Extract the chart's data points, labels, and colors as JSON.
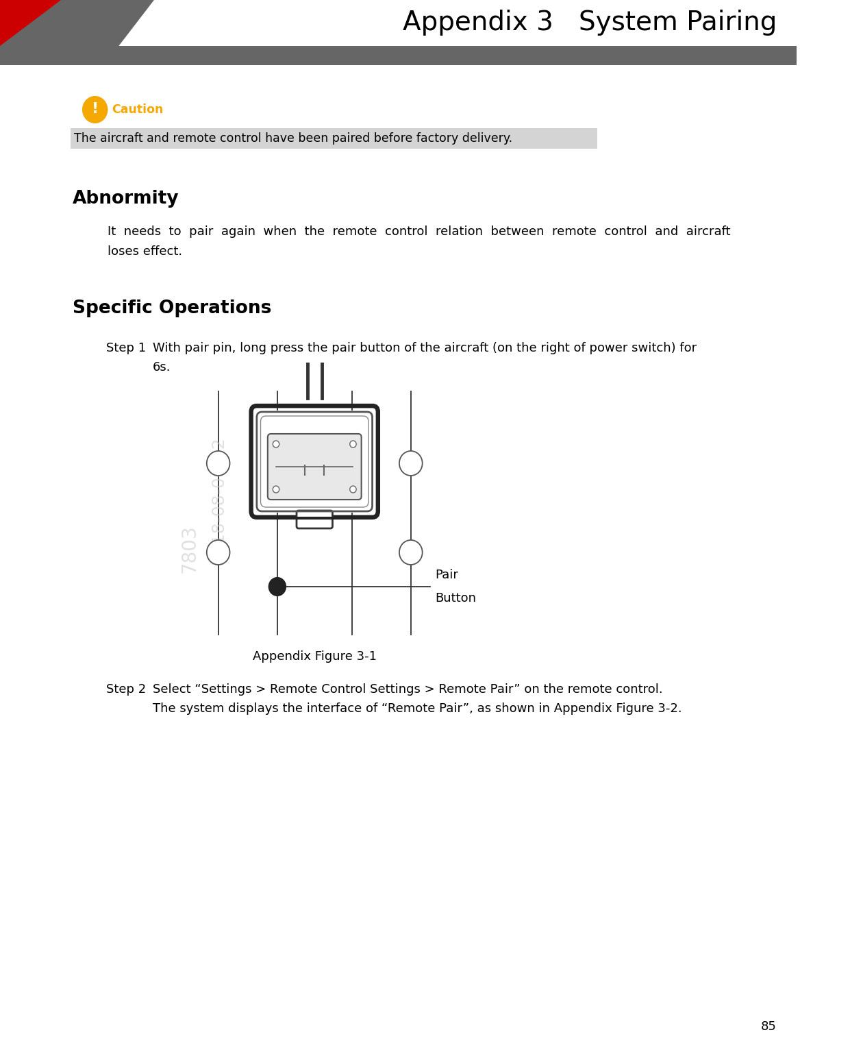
{
  "title": "Appendix 3   System Pairing",
  "page_number": "85",
  "bg_color": "#ffffff",
  "header_bar_color": "#666666",
  "header_red_color": "#cc0000",
  "caution_icon_color": "#f5a800",
  "caution_text": "Caution",
  "caution_text_color": "#f5a800",
  "highlighted_text": "The aircraft and remote control have been paired before factory delivery.",
  "highlight_bg": "#d4d4d4",
  "abnormity_title": "Abnormity",
  "specific_title": "Specific Operations",
  "step1_line1": "With pair pin, long press the pair button of the aircraft (on the right of power switch) for",
  "step1_line2": "6s.",
  "figure_caption": "Appendix Figure 3-1",
  "step2_text": "Select “Settings > Remote Control Settings > Remote Pair” on the remote control.",
  "step2_sub": "The system displays the interface of “Remote Pair”, as shown in Appendix Figure 3-2.",
  "watermark_color": "#c8c8c8",
  "line_color": "#333333",
  "connector_outer_color": "#444444",
  "connector_inner_color": "#888888"
}
